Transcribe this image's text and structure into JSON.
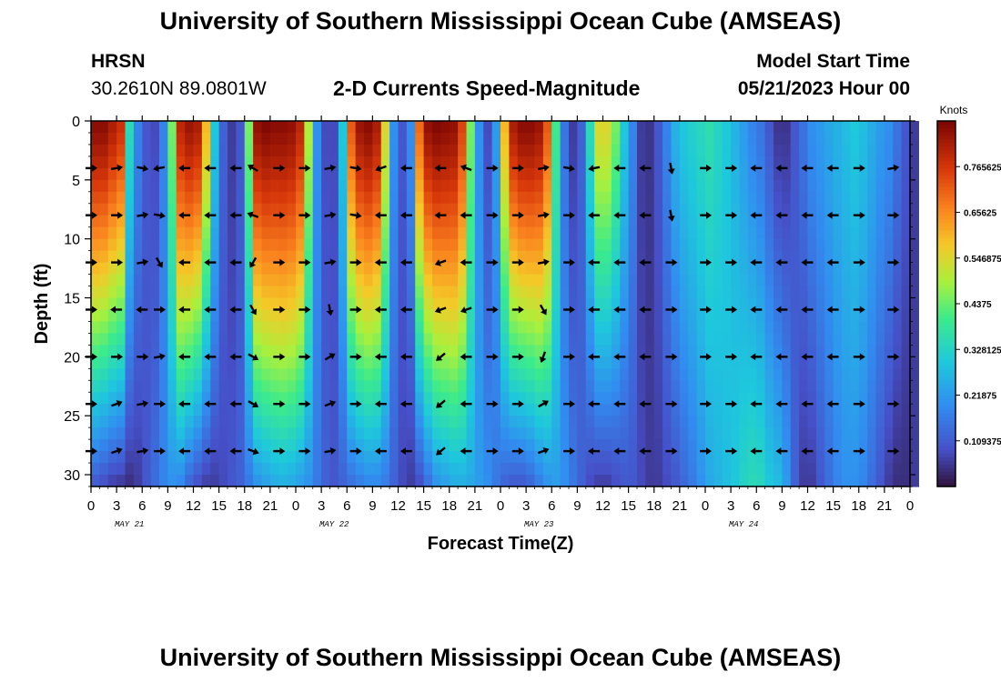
{
  "title": "University of Southern Mississippi Ocean Cube (AMSEAS)",
  "bottom_title": "University of Southern Mississippi Ocean Cube (AMSEAS)",
  "station": {
    "name": "HRSN",
    "coords": "30.2610N  89.0801W"
  },
  "subtitle": "2-D Currents Speed-Magnitude",
  "model_start": {
    "label": "Model Start Time",
    "value": "05/21/2023 Hour 00"
  },
  "colors": {
    "arrow": "#000000",
    "axis": "#000000"
  },
  "chart_data": {
    "type": "heatmap",
    "title": "2-D Currents Speed-Magnitude",
    "xlabel": "Forecast Time(Z)",
    "ylabel": "Depth (ft)",
    "xlim": [
      0,
      96
    ],
    "ylim": [
      31,
      0
    ],
    "x_tick_labels": [
      "0",
      "3",
      "6",
      "9",
      "12",
      "15",
      "18",
      "21",
      "0",
      "3",
      "6",
      "9",
      "12",
      "15",
      "18",
      "21",
      "0",
      "3",
      "6",
      "9",
      "12",
      "15",
      "18",
      "21",
      "0",
      "3",
      "6",
      "9",
      "12",
      "15",
      "18",
      "21",
      "0"
    ],
    "y_ticks": [
      0,
      5,
      10,
      15,
      20,
      25,
      30
    ],
    "day_labels": [
      "MAY 21",
      "MAY 22",
      "MAY 23",
      "MAY 24"
    ],
    "colorbar": {
      "label": "Knots",
      "min": 0.0,
      "max": 0.875,
      "tick_labels": [
        "0.765625",
        "0.65625",
        "0.546875",
        "0.4375",
        "0.328125",
        "0.21875",
        "0.109375"
      ],
      "tick_values": [
        0.765625,
        0.65625,
        0.546875,
        0.4375,
        0.328125,
        0.21875,
        0.109375
      ]
    },
    "depths_ft": [
      0,
      4,
      8,
      12,
      16,
      20,
      24,
      28,
      31
    ],
    "speed_profiles": {
      "surface_knots": [
        0.86,
        0.86,
        0.82,
        0.78,
        0.35,
        0.18,
        0.1,
        0.08,
        0.18,
        0.45,
        0.8,
        0.84,
        0.82,
        0.6,
        0.3,
        0.12,
        0.06,
        0.1,
        0.45,
        0.85,
        0.87,
        0.86,
        0.86,
        0.85,
        0.8,
        0.5,
        0.2,
        0.08,
        0.08,
        0.3,
        0.72,
        0.84,
        0.86,
        0.82,
        0.55,
        0.2,
        0.1,
        0.2,
        0.7,
        0.85,
        0.87,
        0.86,
        0.85,
        0.75,
        0.45,
        0.2,
        0.08,
        0.22,
        0.6,
        0.82,
        0.86,
        0.86,
        0.84,
        0.72,
        0.4,
        0.15,
        0.06,
        0.12,
        0.35,
        0.55,
        0.55,
        0.45,
        0.3,
        0.18,
        0.06,
        0.05,
        0.1,
        0.18,
        0.26,
        0.3,
        0.32,
        0.34,
        0.36,
        0.33,
        0.3,
        0.26,
        0.22,
        0.18,
        0.15,
        0.1,
        0.05,
        0.05,
        0.1,
        0.15,
        0.2,
        0.22,
        0.24,
        0.26,
        0.28,
        0.3,
        0.28,
        0.25,
        0.22,
        0.2,
        0.15,
        0.1,
        0.06
      ],
      "deep_knots": [
        0.1,
        0.08,
        0.06,
        0.05,
        0.04,
        0.06,
        0.1,
        0.14,
        0.18,
        0.2,
        0.18,
        0.12,
        0.08,
        0.06,
        0.06,
        0.08,
        0.1,
        0.12,
        0.16,
        0.2,
        0.22,
        0.24,
        0.25,
        0.24,
        0.22,
        0.2,
        0.16,
        0.12,
        0.1,
        0.12,
        0.14,
        0.16,
        0.18,
        0.18,
        0.16,
        0.12,
        0.08,
        0.06,
        0.08,
        0.14,
        0.2,
        0.22,
        0.24,
        0.25,
        0.24,
        0.22,
        0.2,
        0.16,
        0.12,
        0.1,
        0.1,
        0.12,
        0.16,
        0.2,
        0.22,
        0.2,
        0.16,
        0.12,
        0.08,
        0.06,
        0.06,
        0.08,
        0.1,
        0.1,
        0.08,
        0.06,
        0.06,
        0.08,
        0.1,
        0.13,
        0.16,
        0.2,
        0.24,
        0.26,
        0.28,
        0.3,
        0.33,
        0.35,
        0.34,
        0.3,
        0.28,
        0.22,
        0.12,
        0.06,
        0.06,
        0.1,
        0.14,
        0.18,
        0.2,
        0.2,
        0.18,
        0.14,
        0.1,
        0.06,
        0.04,
        0.04,
        0.06
      ]
    },
    "vector_times_h": [
      0,
      3,
      6,
      8,
      11,
      14,
      17,
      19,
      22,
      25,
      28,
      31,
      34,
      37,
      41,
      44,
      47,
      50,
      53,
      56,
      59,
      62,
      65,
      68,
      72,
      75,
      78,
      81,
      84,
      87,
      90,
      94
    ],
    "vector_directions_deg": {
      "4": [
        0,
        10,
        -10,
        190,
        180,
        180,
        180,
        150,
        0,
        0,
        10,
        -10,
        200,
        180,
        180,
        160,
        0,
        0,
        10,
        -10,
        190,
        180,
        180,
        -80,
        0,
        0,
        180,
        180,
        180,
        180,
        0,
        10
      ],
      "8": [
        0,
        0,
        10,
        -10,
        180,
        180,
        180,
        160,
        0,
        0,
        10,
        -10,
        180,
        180,
        180,
        180,
        0,
        0,
        10,
        0,
        180,
        180,
        180,
        -80,
        0,
        0,
        180,
        180,
        180,
        180,
        0,
        0
      ],
      "12": [
        0,
        0,
        10,
        -60,
        180,
        180,
        180,
        -120,
        0,
        0,
        10,
        0,
        180,
        180,
        200,
        180,
        0,
        0,
        10,
        0,
        180,
        180,
        180,
        0,
        0,
        0,
        180,
        180,
        180,
        180,
        0,
        0
      ],
      "16": [
        0,
        180,
        180,
        0,
        180,
        180,
        180,
        -60,
        0,
        0,
        -80,
        0,
        180,
        180,
        200,
        200,
        0,
        0,
        -60,
        0,
        180,
        180,
        180,
        0,
        0,
        0,
        180,
        180,
        180,
        180,
        0,
        0
      ],
      "20": [
        0,
        0,
        0,
        10,
        180,
        180,
        180,
        -30,
        0,
        0,
        30,
        0,
        180,
        180,
        220,
        180,
        0,
        0,
        -110,
        0,
        180,
        180,
        180,
        0,
        0,
        0,
        180,
        180,
        180,
        180,
        0,
        0
      ],
      "24": [
        0,
        20,
        10,
        0,
        180,
        180,
        180,
        -30,
        0,
        0,
        20,
        0,
        180,
        180,
        220,
        180,
        0,
        0,
        30,
        0,
        180,
        180,
        180,
        0,
        0,
        0,
        180,
        180,
        180,
        180,
        0,
        0
      ],
      "28": [
        0,
        20,
        10,
        0,
        180,
        180,
        180,
        -20,
        0,
        0,
        10,
        0,
        180,
        180,
        220,
        180,
        0,
        0,
        20,
        0,
        180,
        180,
        180,
        0,
        0,
        0,
        180,
        180,
        180,
        180,
        0,
        0
      ]
    }
  }
}
